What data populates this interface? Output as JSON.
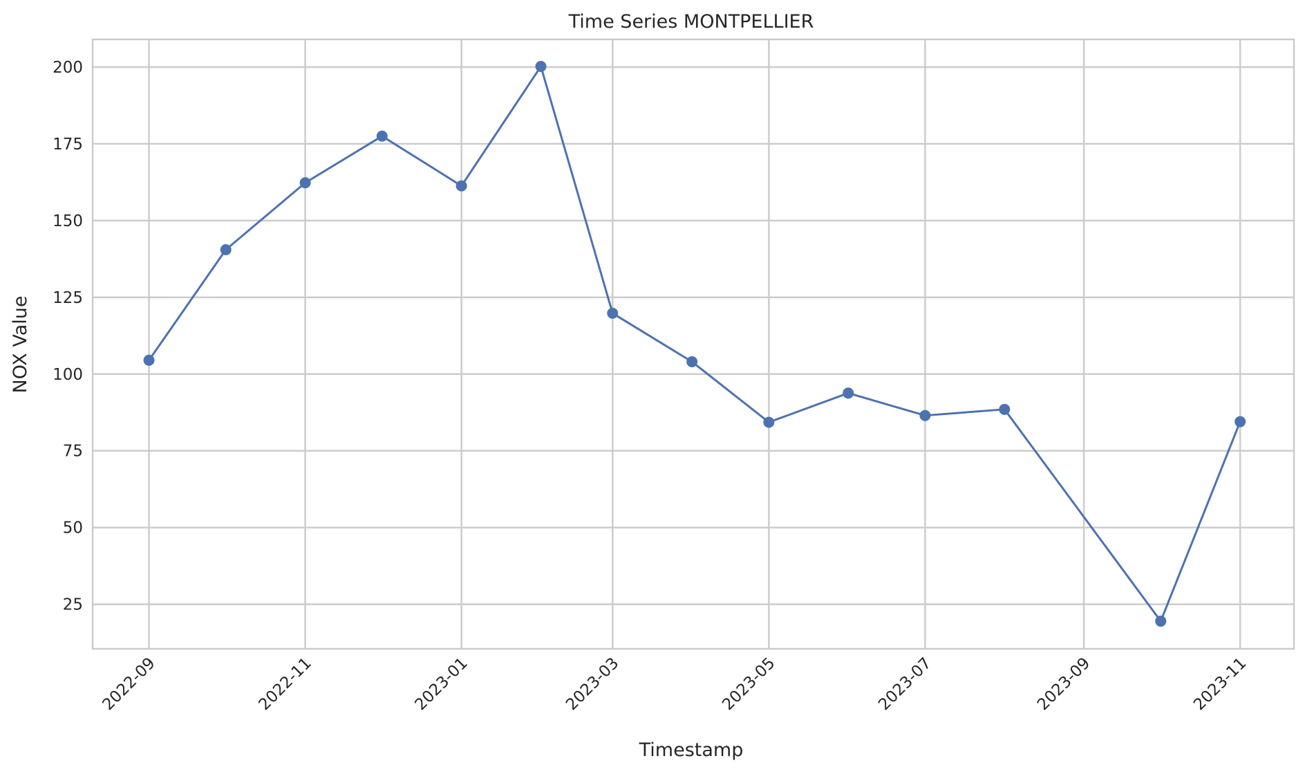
{
  "chart_data": {
    "type": "line",
    "title": "Time Series MONTPELLIER",
    "xlabel": "Timestamp",
    "ylabel": "NOX Value",
    "x_ticks": [
      "2022-09",
      "2022-11",
      "2023-01",
      "2023-03",
      "2023-05",
      "2023-07",
      "2023-09",
      "2023-11"
    ],
    "y_ticks": [
      25,
      50,
      75,
      100,
      125,
      150,
      175,
      200
    ],
    "xlim": [
      "2022-08-10",
      "2023-11-22"
    ],
    "ylim": [
      10.5,
      209
    ],
    "grid": true,
    "series": [
      {
        "color": "#4c72b0",
        "marker": "circle",
        "points": [
          {
            "x": "2022-09-01",
            "y": 104.5
          },
          {
            "x": "2022-10-01",
            "y": 140.5
          },
          {
            "x": "2022-11-01",
            "y": 162.3
          },
          {
            "x": "2022-12-01",
            "y": 177.5
          },
          {
            "x": "2023-01-01",
            "y": 161.3
          },
          {
            "x": "2023-02-01",
            "y": 200.2
          },
          {
            "x": "2023-03-01",
            "y": 119.8
          },
          {
            "x": "2023-04-01",
            "y": 104.0
          },
          {
            "x": "2023-05-01",
            "y": 84.3
          },
          {
            "x": "2023-06-01",
            "y": 93.8
          },
          {
            "x": "2023-07-01",
            "y": 86.5
          },
          {
            "x": "2023-08-01",
            "y": 88.5
          },
          {
            "x": "2023-10-01",
            "y": 19.5
          },
          {
            "x": "2023-11-01",
            "y": 84.5
          }
        ]
      }
    ]
  }
}
